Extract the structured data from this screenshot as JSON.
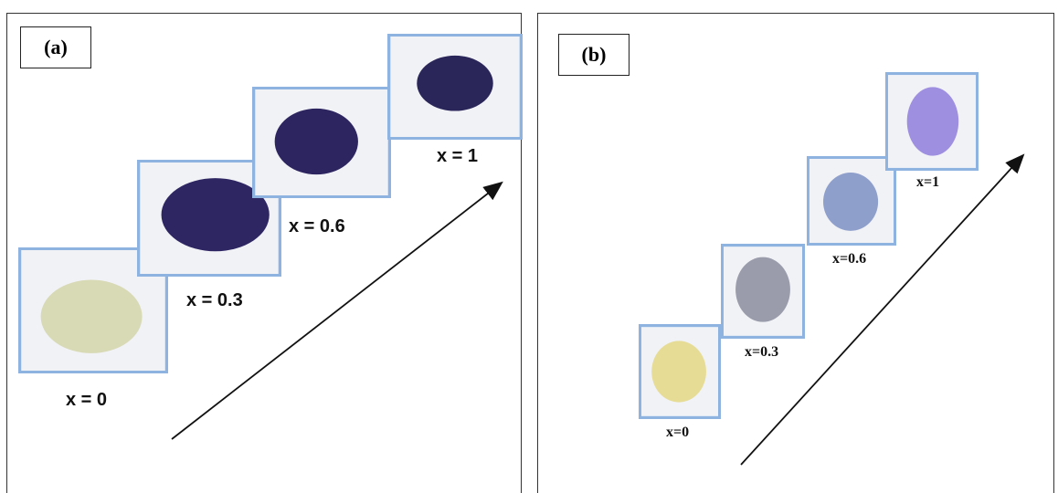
{
  "panel_a": {
    "label": "(a)",
    "samples": [
      {
        "text": "x = 0",
        "color": "#d8d9b5"
      },
      {
        "text": "x = 0.3",
        "color": "#2e2563"
      },
      {
        "text": "x = 0.6",
        "color": "#2d2560"
      },
      {
        "text": "x = 1",
        "color": "#2b2659"
      }
    ]
  },
  "panel_b": {
    "label": "(b)",
    "samples": [
      {
        "text": "x=0",
        "color": "#e6dc96"
      },
      {
        "text": "x=0.3",
        "color": "#9a9cab"
      },
      {
        "text": "x=0.6",
        "color": "#8f9fcc"
      },
      {
        "text": "x=1",
        "color": "#9f8fe0"
      }
    ]
  },
  "photo_background": "#f1f2f6",
  "photo_border_color": "#8fb3e0"
}
